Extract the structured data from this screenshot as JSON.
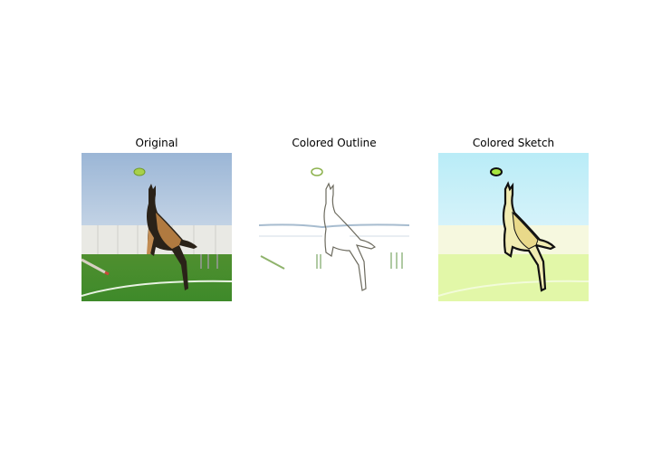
{
  "panels": [
    {
      "title": "Original"
    },
    {
      "title": "Colored Outline"
    },
    {
      "title": "Colored Sketch"
    }
  ]
}
